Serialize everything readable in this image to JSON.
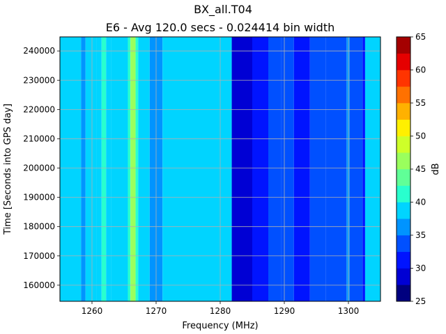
{
  "chart_data": {
    "type": "heatmap",
    "title": "BX_all.T04",
    "subtitle": "E6 - Avg 120.0 secs - 0.024414 bin width",
    "xlabel": "Frequency (MHz)",
    "ylabel": "Time [Seconds into GPS day]",
    "colorbar_label": "dB",
    "xlim": [
      1255,
      1305
    ],
    "ylim": [
      154500,
      244800
    ],
    "x_ticks": [
      1260,
      1270,
      1280,
      1290,
      1300
    ],
    "y_ticks": [
      160000,
      170000,
      180000,
      190000,
      200000,
      210000,
      220000,
      230000,
      240000
    ],
    "colorbar_range": [
      25,
      65
    ],
    "colorbar_ticks": [
      25,
      30,
      35,
      40,
      45,
      50,
      55,
      60,
      65
    ],
    "grid": true,
    "colormap": "jet",
    "color_levels": [
      "#00007f",
      "#0000d4",
      "#0014ff",
      "#0050ff",
      "#0094ff",
      "#00d4ff",
      "#29ffce",
      "#60ff97",
      "#9aff5d",
      "#ceff29",
      "#fff000",
      "#ffb100",
      "#ff7100",
      "#ff3400",
      "#e50000",
      "#a40000"
    ],
    "spectrum_bands": [
      {
        "from": 1255.0,
        "to": 1258.3,
        "db": 37.5
      },
      {
        "from": 1258.3,
        "to": 1259.0,
        "db": 36.5
      },
      {
        "from": 1259.0,
        "to": 1260.7,
        "db": 37.5
      },
      {
        "from": 1260.7,
        "to": 1261.5,
        "db": 39.0
      },
      {
        "from": 1261.5,
        "to": 1262.2,
        "db": 40.0
      },
      {
        "from": 1262.2,
        "to": 1263.0,
        "db": 38.5
      },
      {
        "from": 1263.0,
        "to": 1265.6,
        "db": 37.5
      },
      {
        "from": 1265.6,
        "to": 1266.0,
        "db": 42.0
      },
      {
        "from": 1266.0,
        "to": 1266.8,
        "db": 46.0
      },
      {
        "from": 1266.8,
        "to": 1267.2,
        "db": 42.0
      },
      {
        "from": 1267.2,
        "to": 1269.0,
        "db": 37.5
      },
      {
        "from": 1269.0,
        "to": 1271.0,
        "db": 36.0
      },
      {
        "from": 1271.0,
        "to": 1281.8,
        "db": 37.5
      },
      {
        "from": 1281.8,
        "to": 1285.0,
        "db": 29.0
      },
      {
        "from": 1285.0,
        "to": 1287.5,
        "db": 31.0
      },
      {
        "from": 1287.5,
        "to": 1289.5,
        "db": 33.0
      },
      {
        "from": 1289.5,
        "to": 1291.5,
        "db": 34.0
      },
      {
        "from": 1291.5,
        "to": 1294.0,
        "db": 32.0
      },
      {
        "from": 1294.0,
        "to": 1296.5,
        "db": 33.0
      },
      {
        "from": 1296.5,
        "to": 1299.7,
        "db": 34.0
      },
      {
        "from": 1299.7,
        "to": 1300.2,
        "db": 36.5
      },
      {
        "from": 1300.2,
        "to": 1302.2,
        "db": 34.0
      },
      {
        "from": 1302.2,
        "to": 1302.6,
        "db": 31.0
      },
      {
        "from": 1302.6,
        "to": 1305.0,
        "db": 37.5
      }
    ]
  }
}
